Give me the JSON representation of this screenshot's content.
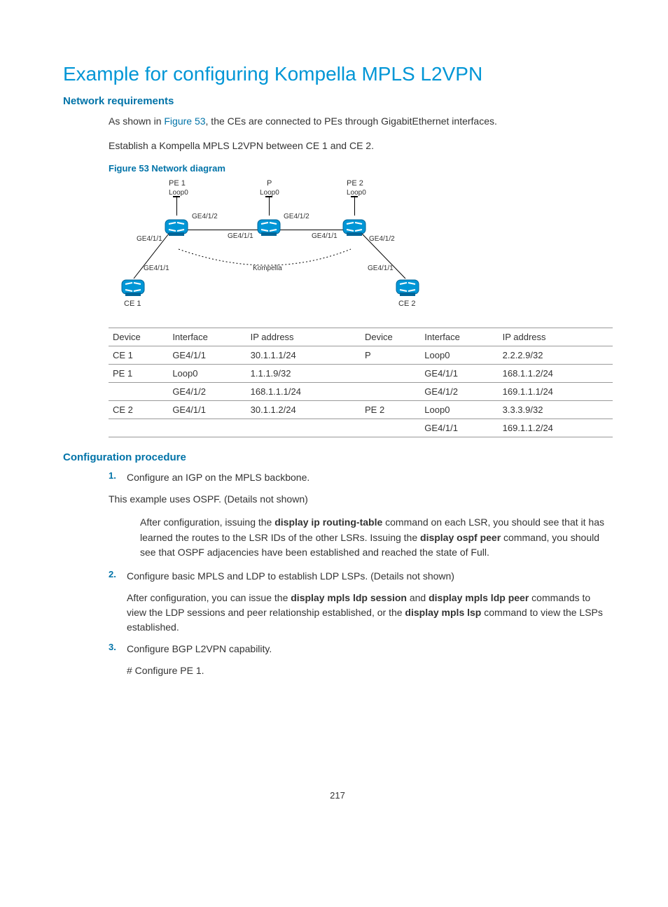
{
  "title": "Example for configuring Kompella MPLS L2VPN",
  "sections": {
    "net_req": "Network requirements",
    "config_proc": "Configuration procedure"
  },
  "intro": {
    "p1_before": "As shown in ",
    "p1_link": "Figure 53",
    "p1_after": ", the CEs are connected to PEs through GigabitEthernet interfaces.",
    "p2": "Establish a Kompella MPLS L2VPN between CE 1 and CE 2."
  },
  "figure_caption": "Figure 53 Network diagram",
  "diagram": {
    "type": "network",
    "background_color": "#ffffff",
    "router_color": "#0096d6",
    "router_label_color": "#333333",
    "line_color": "#000000",
    "font_size_small": 10,
    "font_size_label": 11,
    "nodes": {
      "pe1": {
        "label": "PE 1",
        "sub": "Loop0"
      },
      "p": {
        "label": "P",
        "sub": "Loop0"
      },
      "pe2": {
        "label": "PE 2",
        "sub": "Loop0"
      },
      "ce1": {
        "label": "CE 1"
      },
      "ce2": {
        "label": "CE 2"
      }
    },
    "ifaces": {
      "pe1_ge412": "GE4/1/2",
      "pe1_ge411": "GE4/1/1",
      "p_ge412": "GE4/1/2",
      "p_ge411": "GE4/1/1",
      "pe2_ge411": "GE4/1/1",
      "pe2_ge412": "GE4/1/2",
      "ce1_ge411": "GE4/1/1",
      "ce2_ge411": "GE4/1/1"
    },
    "arc_label": "Kompella"
  },
  "table": {
    "columns": [
      "Device",
      "Interface",
      "IP address",
      "Device",
      "Interface",
      "IP address"
    ],
    "rows": [
      [
        "CE 1",
        "GE4/1/1",
        "30.1.1.1/24",
        "P",
        "Loop0",
        "2.2.2.9/32"
      ],
      [
        "PE 1",
        "Loop0",
        "1.1.1.9/32",
        "",
        "GE4/1/1",
        "168.1.1.2/24"
      ],
      [
        "",
        "GE4/1/2",
        "168.1.1.1/24",
        "",
        "GE4/1/2",
        "169.1.1.1/24"
      ],
      [
        "CE 2",
        "GE4/1/1",
        "30.1.1.2/24",
        "PE 2",
        "Loop0",
        "3.3.3.9/32"
      ],
      [
        "",
        "",
        "",
        "",
        "GE4/1/1",
        "169.1.1.2/24"
      ]
    ],
    "col_widths": [
      "70px",
      "95px",
      "145px",
      "70px",
      "95px",
      "145px"
    ]
  },
  "proc": {
    "s1": "Configure an IGP on the MPLS backbone.",
    "s1_note": "This example uses OSPF. (Details not shown)",
    "s1_after_a": "After configuration, issuing the ",
    "s1_cmd1": "display ip routing-table",
    "s1_after_b": " command on each LSR, you should see that it has learned the routes to the LSR IDs of the other LSRs. Issuing the ",
    "s1_cmd2": "display ospf peer",
    "s1_after_c": " command, you should see that OSPF adjacencies have been established and reached the state of Full.",
    "s2": "Configure basic MPLS and LDP to establish LDP LSPs. (Details not shown)",
    "s2_after_a": "After configuration, you can issue the ",
    "s2_cmd1": "display mpls ldp session",
    "s2_mid": " and ",
    "s2_cmd2": "display mpls ldp peer",
    "s2_after_b": " commands to view the LDP sessions and peer relationship established, or the ",
    "s2_cmd3": "display mpls lsp",
    "s2_after_c": " command to view the LSPs established.",
    "s3": "Configure BGP L2VPN capability.",
    "s3_sub": "# Configure PE 1."
  },
  "page_number": "217"
}
